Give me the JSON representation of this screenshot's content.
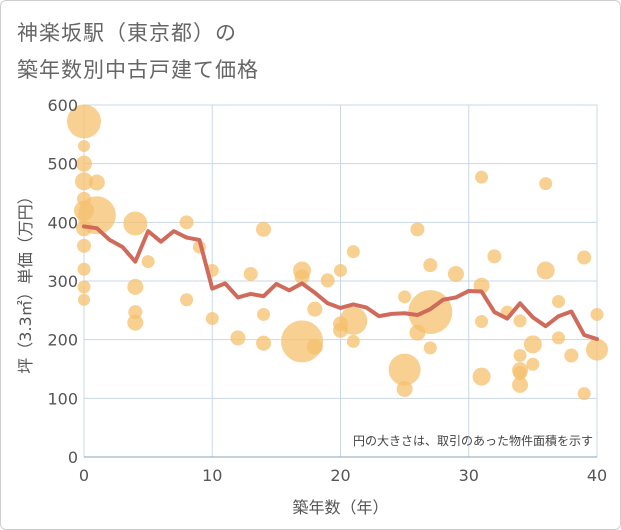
{
  "title_line1": "神楽坂駅（東京都）の",
  "title_line2": "築年数別中古戸建て価格",
  "chart_data": {
    "type": "scatter",
    "title": "神楽坂駅（東京都）の 築年数別中古戸建て価格",
    "xlabel": "築年数（年）",
    "ylabel": "坪（3.3㎡）単価（万円）",
    "xlim": [
      0,
      40
    ],
    "ylim": [
      0,
      600
    ],
    "xticks": [
      0,
      10,
      20,
      30,
      40
    ],
    "yticks": [
      0,
      100,
      200,
      300,
      400,
      500,
      600
    ],
    "grid": true,
    "note": "円の大きさは、取引のあった物件面積を示す",
    "bubble_color": "#f5c06e",
    "line_color": "#d06a5a",
    "bubbles": [
      {
        "x": 0,
        "y": 572,
        "size": 30
      },
      {
        "x": 0,
        "y": 500,
        "size": 12
      },
      {
        "x": 0,
        "y": 470,
        "size": 14
      },
      {
        "x": 0,
        "y": 440,
        "size": 10
      },
      {
        "x": 0,
        "y": 420,
        "size": 16
      },
      {
        "x": 0,
        "y": 390,
        "size": 12
      },
      {
        "x": 0,
        "y": 360,
        "size": 10
      },
      {
        "x": 0,
        "y": 320,
        "size": 9
      },
      {
        "x": 0,
        "y": 290,
        "size": 9
      },
      {
        "x": 0,
        "y": 268,
        "size": 8
      },
      {
        "x": 0,
        "y": 530,
        "size": 8
      },
      {
        "x": 1,
        "y": 468,
        "size": 12
      },
      {
        "x": 1,
        "y": 412,
        "size": 34
      },
      {
        "x": 4,
        "y": 398,
        "size": 20
      },
      {
        "x": 4,
        "y": 290,
        "size": 12
      },
      {
        "x": 4,
        "y": 247,
        "size": 10
      },
      {
        "x": 4,
        "y": 229,
        "size": 12
      },
      {
        "x": 5,
        "y": 333,
        "size": 9
      },
      {
        "x": 8,
        "y": 400,
        "size": 10
      },
      {
        "x": 8,
        "y": 268,
        "size": 9
      },
      {
        "x": 9,
        "y": 358,
        "size": 9
      },
      {
        "x": 10,
        "y": 318,
        "size": 9
      },
      {
        "x": 10,
        "y": 236,
        "size": 9
      },
      {
        "x": 12,
        "y": 203,
        "size": 11
      },
      {
        "x": 13,
        "y": 312,
        "size": 10
      },
      {
        "x": 14,
        "y": 388,
        "size": 11
      },
      {
        "x": 14,
        "y": 243,
        "size": 9
      },
      {
        "x": 14,
        "y": 194,
        "size": 11
      },
      {
        "x": 17,
        "y": 318,
        "size": 14
      },
      {
        "x": 17,
        "y": 307,
        "size": 11
      },
      {
        "x": 17,
        "y": 197,
        "size": 38
      },
      {
        "x": 18,
        "y": 188,
        "size": 12
      },
      {
        "x": 18,
        "y": 252,
        "size": 11
      },
      {
        "x": 19,
        "y": 301,
        "size": 10
      },
      {
        "x": 20,
        "y": 318,
        "size": 9
      },
      {
        "x": 20,
        "y": 227,
        "size": 11
      },
      {
        "x": 20,
        "y": 216,
        "size": 11
      },
      {
        "x": 21,
        "y": 350,
        "size": 9
      },
      {
        "x": 21,
        "y": 232,
        "size": 24
      },
      {
        "x": 21,
        "y": 197,
        "size": 9
      },
      {
        "x": 25,
        "y": 273,
        "size": 9
      },
      {
        "x": 25,
        "y": 149,
        "size": 28
      },
      {
        "x": 25,
        "y": 116,
        "size": 12
      },
      {
        "x": 26,
        "y": 388,
        "size": 10
      },
      {
        "x": 26,
        "y": 212,
        "size": 12
      },
      {
        "x": 27,
        "y": 327,
        "size": 10
      },
      {
        "x": 27,
        "y": 247,
        "size": 40
      },
      {
        "x": 27,
        "y": 186,
        "size": 9
      },
      {
        "x": 29,
        "y": 312,
        "size": 12
      },
      {
        "x": 31,
        "y": 477,
        "size": 9
      },
      {
        "x": 31,
        "y": 292,
        "size": 12
      },
      {
        "x": 31,
        "y": 231,
        "size": 9
      },
      {
        "x": 31,
        "y": 137,
        "size": 14
      },
      {
        "x": 32,
        "y": 342,
        "size": 10
      },
      {
        "x": 33,
        "y": 247,
        "size": 9
      },
      {
        "x": 34,
        "y": 232,
        "size": 9
      },
      {
        "x": 34,
        "y": 173,
        "size": 9
      },
      {
        "x": 34,
        "y": 148,
        "size": 12
      },
      {
        "x": 34,
        "y": 143,
        "size": 10
      },
      {
        "x": 34,
        "y": 123,
        "size": 12
      },
      {
        "x": 35,
        "y": 192,
        "size": 14
      },
      {
        "x": 35,
        "y": 158,
        "size": 9
      },
      {
        "x": 36,
        "y": 466,
        "size": 9
      },
      {
        "x": 36,
        "y": 318,
        "size": 14
      },
      {
        "x": 37,
        "y": 265,
        "size": 9
      },
      {
        "x": 37,
        "y": 203,
        "size": 9
      },
      {
        "x": 38,
        "y": 173,
        "size": 10
      },
      {
        "x": 39,
        "y": 340,
        "size": 10
      },
      {
        "x": 39,
        "y": 108,
        "size": 9
      },
      {
        "x": 40,
        "y": 243,
        "size": 9
      },
      {
        "x": 40,
        "y": 183,
        "size": 18
      }
    ],
    "trend": {
      "x": [
        0,
        1,
        2,
        3,
        4,
        5,
        6,
        7,
        8,
        9,
        10,
        11,
        12,
        13,
        14,
        15,
        16,
        17,
        18,
        19,
        20,
        21,
        22,
        23,
        24,
        25,
        26,
        27,
        28,
        29,
        30,
        31,
        32,
        33,
        34,
        35,
        36,
        37,
        38,
        39,
        40
      ],
      "y": [
        393,
        390,
        370,
        358,
        333,
        385,
        367,
        385,
        374,
        370,
        287,
        296,
        272,
        278,
        274,
        295,
        284,
        296,
        280,
        262,
        254,
        260,
        255,
        240,
        244,
        245,
        242,
        252,
        268,
        272,
        283,
        282,
        247,
        236,
        262,
        238,
        223,
        240,
        248,
        208,
        201
      ]
    }
  }
}
